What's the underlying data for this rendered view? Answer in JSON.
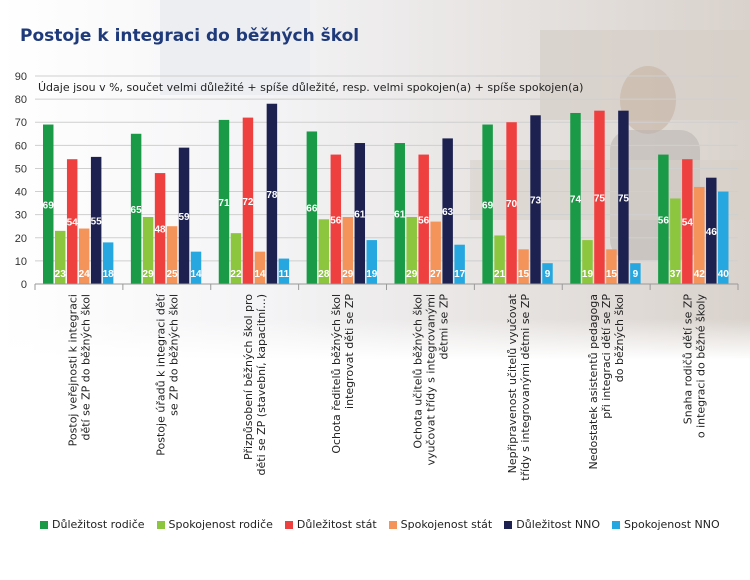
{
  "title": "Postoje k integraci do běžných škol",
  "note": "Údaje jsou v %, součet velmi důležité + spíše důležité, resp. velmi spokojen(a) + spíše spokojen(a)",
  "chart_data": {
    "type": "bar",
    "ylim": [
      0,
      90
    ],
    "yticks": [
      0,
      10,
      20,
      30,
      40,
      50,
      60,
      70,
      80,
      90
    ],
    "grid": true,
    "legend_position": "bottom",
    "categories": [
      [
        "Postoj veřejnosti k integraci",
        "dětí se ZP do běžných škol"
      ],
      [
        "Postoje úřadů k integraci dětí",
        "se ZP do běžných škol"
      ],
      [
        "Přizpůsobení běžných škol pro",
        "děti se ZP (stavební, kapacitní...)"
      ],
      [
        "Ochota ředitelů běžných škol",
        "integrovat děti se ZP"
      ],
      [
        "Ochota učitelů běžných škol",
        "vyučovat třídy s integrovanými",
        "dětmi se ZP"
      ],
      [
        "Nepřipravenost učitelů vyučovat",
        "třídy s integrovanými dětmi se ZP"
      ],
      [
        "Nedostatek asistentů pedagoga",
        "při integraci dětí se ZP",
        "do běžných škol"
      ],
      [
        "Snaha rodičů dětí se ZP",
        "o integraci do běžné školy"
      ]
    ],
    "series": [
      {
        "name": "Důležitost rodiče",
        "color": "#1a9a47",
        "values": [
          69,
          65,
          71,
          66,
          61,
          69,
          74,
          56
        ]
      },
      {
        "name": "Spokojenost rodiče",
        "color": "#8cc63f",
        "values": [
          23,
          29,
          22,
          28,
          29,
          21,
          19,
          37
        ]
      },
      {
        "name": "Důležitost stát",
        "color": "#ef4040",
        "values": [
          54,
          48,
          72,
          56,
          56,
          70,
          75,
          54
        ]
      },
      {
        "name": "Spokojenost stát",
        "color": "#f4935a",
        "values": [
          24,
          25,
          14,
          29,
          27,
          15,
          15,
          42
        ]
      },
      {
        "name": "Důležitost NNO",
        "color": "#1c2150",
        "values": [
          55,
          59,
          78,
          61,
          63,
          73,
          75,
          46
        ]
      },
      {
        "name": "Spokojenost NNO",
        "color": "#27a7df",
        "values": [
          18,
          14,
          11,
          19,
          17,
          9,
          9,
          40
        ]
      }
    ]
  }
}
